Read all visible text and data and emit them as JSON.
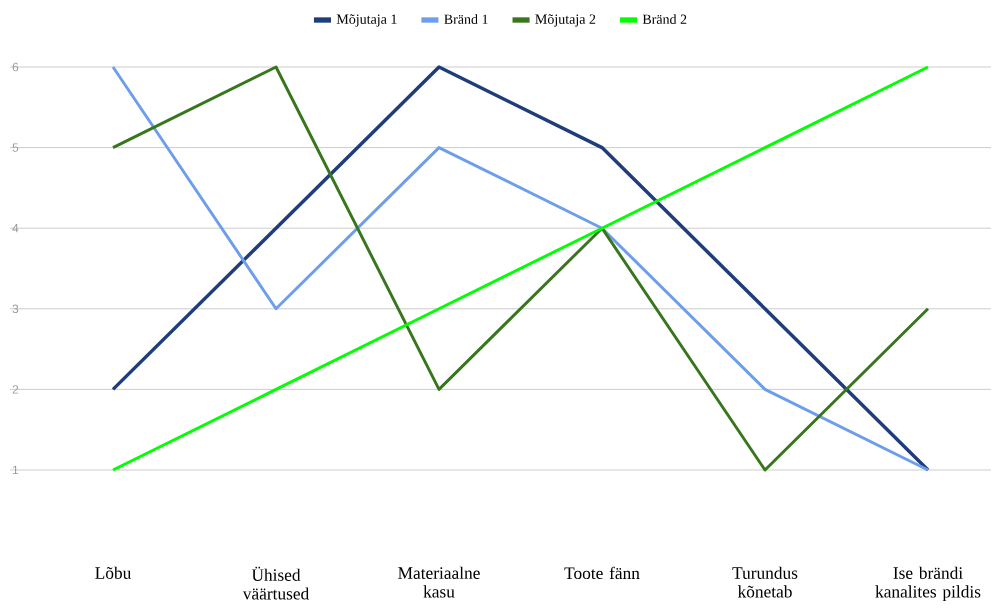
{
  "chart_data": {
    "type": "line",
    "categories": [
      "Lõbu",
      "Ühised väärtused",
      "Materiaalne kasu",
      "Toote fänn",
      "Turundus kõnetab",
      "Ise brändi kanalites pildis"
    ],
    "series": [
      {
        "name": "Mõjutaja 1",
        "color": "#1f3d7a",
        "values": [
          2,
          4,
          6,
          5,
          3,
          1
        ]
      },
      {
        "name": "Bränd 1",
        "color": "#6d9eeb",
        "values": [
          6,
          3,
          5,
          4,
          2,
          1
        ]
      },
      {
        "name": "Mõjutaja 2",
        "color": "#38761d",
        "values": [
          5,
          6,
          2,
          4,
          1,
          3
        ]
      },
      {
        "name": "Bränd 2",
        "color": "#00ff00",
        "values": [
          1,
          2,
          3,
          4,
          5,
          6
        ]
      }
    ],
    "ylim": [
      1,
      6
    ],
    "yticks": [
      1,
      2,
      3,
      4,
      5,
      6
    ],
    "grid": "y",
    "legend": "top"
  }
}
